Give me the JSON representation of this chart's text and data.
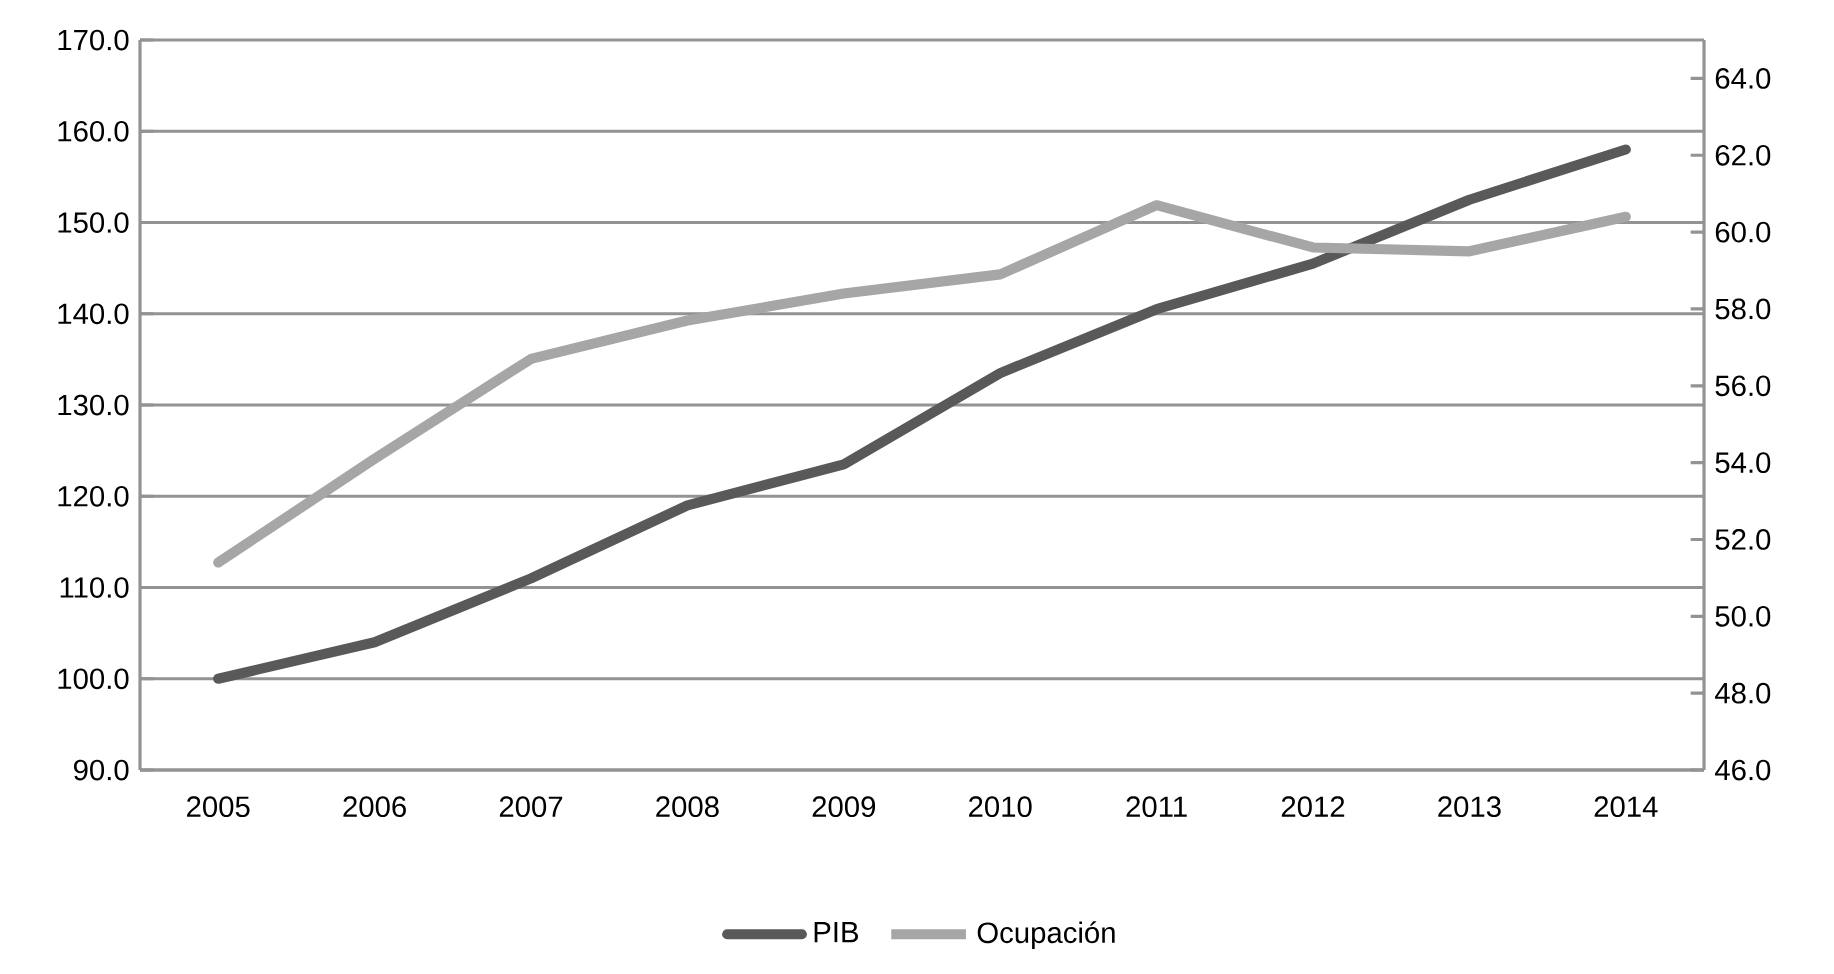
{
  "chart_data": {
    "type": "line",
    "categories": [
      "2005",
      "2006",
      "2007",
      "2008",
      "2009",
      "2010",
      "2011",
      "2012",
      "2013",
      "2014"
    ],
    "series": [
      {
        "name": "PIB",
        "color": "#595959",
        "values": [
          100,
          104,
          111,
          119,
          123.5,
          133.5,
          140.5,
          145.5,
          152.5,
          158
        ]
      },
      {
        "name": "Ocupación",
        "color": "#a6a6a6",
        "axis": "y2",
        "values": [
          51.4,
          54.1,
          56.7,
          57.7,
          58.4,
          58.9,
          60.7,
          59.6,
          59.5,
          60.4
        ]
      }
    ],
    "ylim": [
      90,
      170
    ],
    "yticks": [
      {
        "value": 90,
        "label": "90.0"
      },
      {
        "value": 100,
        "label": "100.0"
      },
      {
        "value": 110,
        "label": "110.0"
      },
      {
        "value": 120,
        "label": "120.0"
      },
      {
        "value": 130,
        "label": "130.0"
      },
      {
        "value": 140,
        "label": "140.0"
      },
      {
        "value": 150,
        "label": "150.0"
      },
      {
        "value": 160,
        "label": "160.0"
      },
      {
        "value": 170,
        "label": "170.0"
      }
    ],
    "y2lim": [
      46,
      65
    ],
    "y2ticks": [
      {
        "value": 46,
        "label": "46.0"
      },
      {
        "value": 48,
        "label": "48.0"
      },
      {
        "value": 50,
        "label": "50.0"
      },
      {
        "value": 52,
        "label": "52.0"
      },
      {
        "value": 54,
        "label": "54.0"
      },
      {
        "value": 56,
        "label": "56.0"
      },
      {
        "value": 58,
        "label": "58.0"
      },
      {
        "value": 60,
        "label": "60.0"
      },
      {
        "value": 62,
        "label": "62.0"
      },
      {
        "value": 64,
        "label": "64.0"
      }
    ],
    "grid": "y",
    "legend": "bottom",
    "marker": "none",
    "line_style": "solid"
  }
}
